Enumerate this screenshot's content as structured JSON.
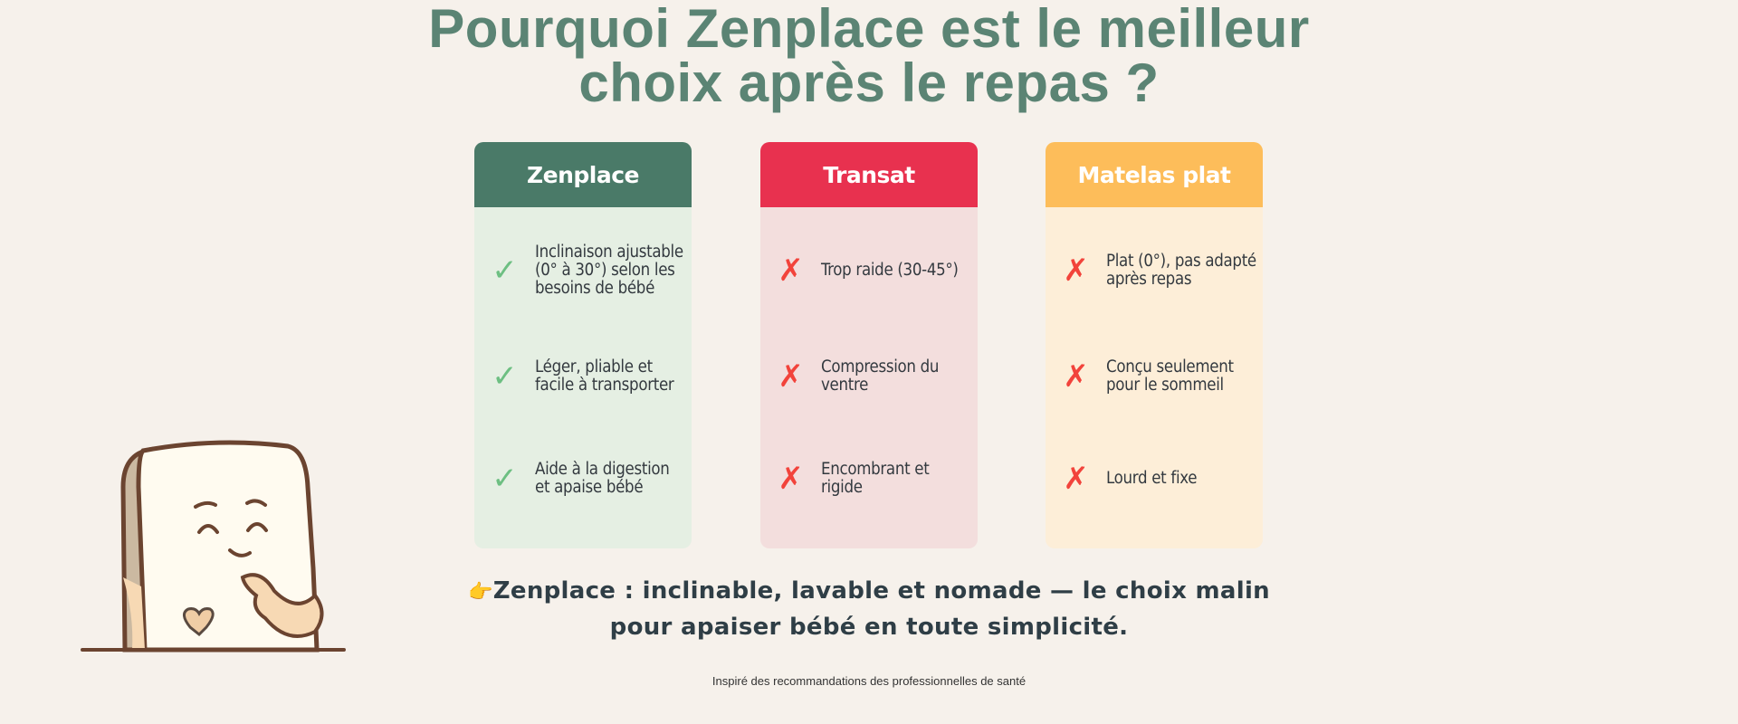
{
  "title": {
    "line1": "Pourquoi Zenplace est le meilleur",
    "line2": "choix après le repas ?"
  },
  "columns": [
    {
      "name": "Zenplace",
      "header_color": "#4a7a68",
      "body_color": "#e5efe3",
      "icon": "check-icon",
      "items": [
        "Inclinaison ajustable (0° à 30°) selon les besoins de bébé",
        "Léger, pliable et facile à transporter",
        "Aide à la digestion et apaise bébé"
      ]
    },
    {
      "name": "Transat",
      "header_color": "#e8314f",
      "body_color": "#f3dedd",
      "icon": "cross-icon",
      "items": [
        "Trop raide (30-45°)",
        "Compression du ventre",
        "Encombrant et rigide"
      ]
    },
    {
      "name": "Matelas plat",
      "header_color": "#fdbd5a",
      "body_color": "#fdeed8",
      "icon": "cross-icon",
      "items": [
        "Plat (0°), pas adapté après repas",
        "Conçu seulement pour le sommeil",
        "Lourd et fixe"
      ]
    }
  ],
  "icons": {
    "check": "✓",
    "cross": "✗",
    "pointing": "👉"
  },
  "summary": {
    "line1": "Zenplace : inclinable, lavable et nomade — le choix malin",
    "line2": "pour apaiser bébé en toute simplicité."
  },
  "footer": "Inspiré des recommandations des professionnelles de santé"
}
